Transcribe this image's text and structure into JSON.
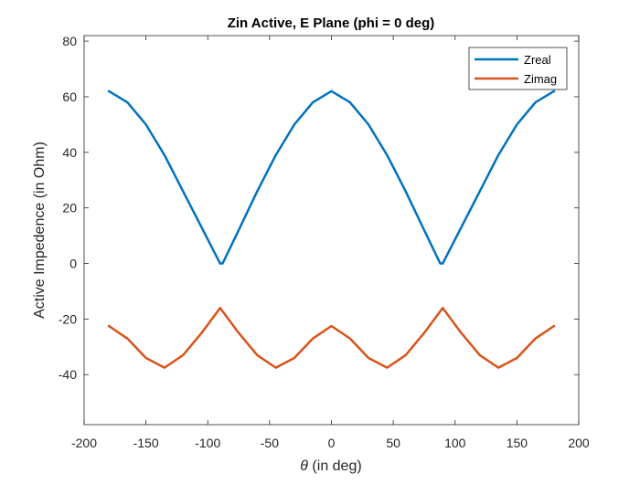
{
  "chart_data": {
    "type": "line",
    "title": "Zin Active, E Plane (phi = 0 deg)",
    "xlabel_symbol": "θ",
    "xlabel_text": " (in deg)",
    "ylabel": "Active Impedence (in Ohm)",
    "xlim": [
      -200,
      200
    ],
    "ylim": [
      -58,
      82
    ],
    "xticks": [
      -200,
      -150,
      -100,
      -50,
      0,
      50,
      100,
      150,
      200
    ],
    "yticks": [
      -40,
      -20,
      0,
      20,
      40,
      60,
      80
    ],
    "grid": false,
    "legend_position": "top-right",
    "series": [
      {
        "name": "Zreal",
        "color": "#0072BD",
        "x": [
          -180,
          -165,
          -150,
          -135,
          -120,
          -105,
          -90,
          -88,
          -75,
          -60,
          -45,
          -30,
          -15,
          0,
          15,
          30,
          45,
          60,
          75,
          88,
          90,
          105,
          120,
          135,
          150,
          165,
          180
        ],
        "y": [
          62,
          58,
          50,
          39,
          26,
          13,
          0,
          0,
          12,
          26,
          39,
          50,
          58,
          62,
          58,
          50,
          39,
          26,
          12,
          0,
          0,
          13,
          26,
          39,
          50,
          58,
          62
        ]
      },
      {
        "name": "Zimag",
        "color": "#D95319",
        "x": [
          -180,
          -165,
          -150,
          -135,
          -120,
          -105,
          -90,
          -75,
          -60,
          -45,
          -30,
          -15,
          0,
          15,
          30,
          45,
          60,
          75,
          90,
          105,
          120,
          135,
          150,
          165,
          180
        ],
        "y": [
          -22.5,
          -27,
          -34,
          -37.5,
          -33,
          -25,
          -16,
          -25,
          -33,
          -37.5,
          -34,
          -27,
          -22.5,
          -27,
          -34,
          -37.5,
          -33,
          -25,
          -16,
          -25,
          -33,
          -37.5,
          -34,
          -27,
          -22.5
        ]
      }
    ]
  }
}
